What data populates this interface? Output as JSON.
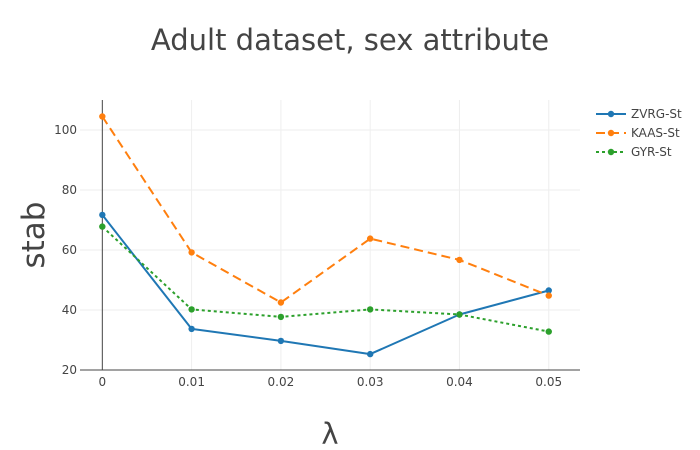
{
  "chart_data": {
    "type": "line",
    "title": "Adult dataset, sex attribute",
    "xlabel": "λ",
    "ylabel": "stab",
    "x": [
      0,
      0.01,
      0.02,
      0.03,
      0.04,
      0.05
    ],
    "x_tick_labels": [
      "0",
      "0.01",
      "0.02",
      "0.03",
      "0.04",
      "0.05"
    ],
    "xlim": [
      -0.0025,
      0.0535
    ],
    "ylim": [
      20,
      110
    ],
    "y_ticks": [
      20,
      40,
      60,
      80,
      100
    ],
    "y_tick_labels": [
      "20",
      "40",
      "60",
      "80",
      "100"
    ],
    "grid": true,
    "legend_position": "top-right",
    "series": [
      {
        "name": "ZVRG-St",
        "color": "#1f77b4",
        "dash": "solid",
        "values": [
          71.7,
          33.7,
          29.7,
          25.3,
          38.5,
          46.5
        ]
      },
      {
        "name": "KAAS-St",
        "color": "#ff7f0e",
        "dash": "dash",
        "values": [
          104.5,
          59.2,
          42.5,
          63.8,
          56.7,
          44.8
        ]
      },
      {
        "name": "GYR-St",
        "color": "#2ca02c",
        "dash": "dot",
        "values": [
          67.8,
          40.2,
          37.7,
          40.2,
          38.5,
          32.8
        ]
      }
    ]
  }
}
